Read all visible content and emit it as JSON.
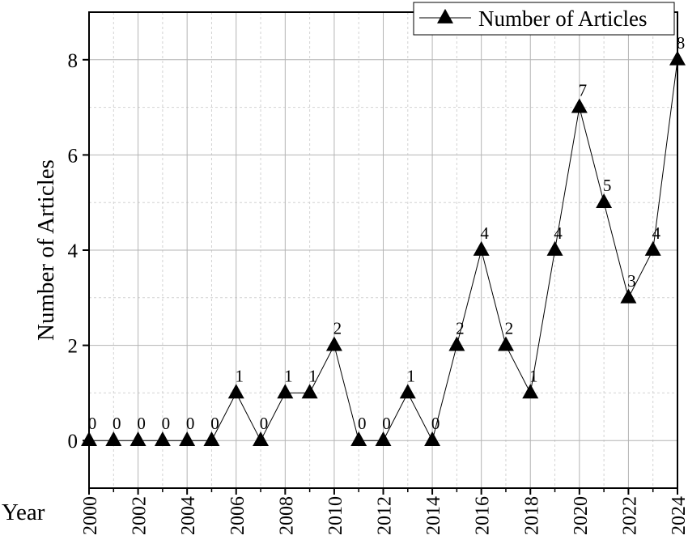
{
  "chart_data": {
    "type": "line",
    "title": "",
    "xlabel": "Year",
    "ylabel": "Number of Articles",
    "x": [
      2000,
      2001,
      2002,
      2003,
      2004,
      2005,
      2006,
      2007,
      2008,
      2009,
      2010,
      2011,
      2012,
      2013,
      2014,
      2015,
      2016,
      2017,
      2018,
      2019,
      2020,
      2021,
      2022,
      2023,
      2024
    ],
    "x_ticks": [
      "2000",
      "2002",
      "2004",
      "2006",
      "2008",
      "2010",
      "2012",
      "2014",
      "2016",
      "2018",
      "2020",
      "2022",
      "2024"
    ],
    "y_ticks": [
      "0",
      "2",
      "4",
      "6",
      "8"
    ],
    "xlim": [
      2000,
      2024
    ],
    "ylim": [
      -1,
      9
    ],
    "grid": true,
    "legend_position": "top-right",
    "marker": "triangle",
    "series": [
      {
        "name": "Number of Articles",
        "values": [
          0,
          0,
          0,
          0,
          0,
          0,
          1,
          0,
          1,
          1,
          2,
          0,
          0,
          1,
          0,
          2,
          4,
          2,
          1,
          4,
          7,
          5,
          3,
          4,
          8
        ],
        "labels": [
          "0",
          "0",
          "0",
          "0",
          "0",
          "0",
          "1",
          "0",
          "1",
          "1",
          "2",
          "0",
          "0",
          "1",
          "0",
          "2",
          "4",
          "2",
          "1",
          "4",
          "7",
          "5",
          "3",
          "4",
          "8"
        ]
      }
    ]
  }
}
